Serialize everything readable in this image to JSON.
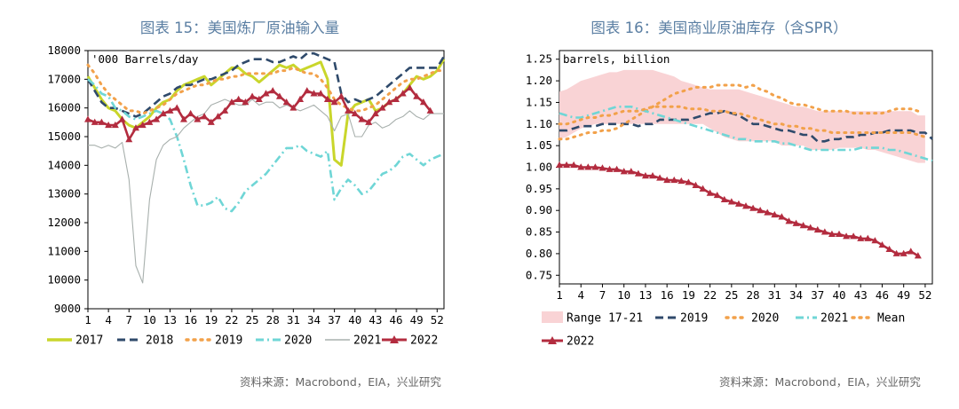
{
  "left_title": "图表 15：美国炼厂原油输入量",
  "right_title": "图表 16：美国商业原油库存（含SPR）",
  "left_source": "资料来源：Macrobond，EIA，兴业研究",
  "right_source": "资料来源：Macrobond，EIA，兴业研究",
  "colors": {
    "title": "#5b7fa3",
    "y2017": "#c9d62b",
    "y2018": "#2f4a6b",
    "y2019": "#f2a14a",
    "y2020": "#6fd6d6",
    "y2021": "#a8b0ad",
    "y2022": "#b32c3f",
    "range": "#f9d3d5",
    "mean": "#f2a14a"
  },
  "chart_data": [
    {
      "type": "line",
      "title": "图表 15：美国炼厂原油输入量",
      "unit_label": "'000 Barrels/day",
      "xlabel": "",
      "ylabel": "",
      "xlim": [
        1,
        53
      ],
      "ylim": [
        9000,
        18000
      ],
      "x_ticks": [
        1,
        4,
        7,
        10,
        13,
        16,
        19,
        22,
        25,
        28,
        31,
        34,
        37,
        40,
        43,
        46,
        49,
        52
      ],
      "y_ticks": [
        9000,
        10000,
        11000,
        12000,
        13000,
        14000,
        15000,
        16000,
        17000,
        18000
      ],
      "legend_position": "bottom",
      "series": [
        {
          "name": "2017",
          "style": "solid-thick",
          "color_key": "y2017",
          "x_start": 1,
          "values": [
            17100,
            16700,
            16300,
            16000,
            15900,
            15600,
            15400,
            15300,
            15500,
            15700,
            16000,
            16200,
            16300,
            16600,
            16800,
            16900,
            17000,
            17100,
            16800,
            17000,
            17200,
            17400,
            17400,
            17200,
            17100,
            16900,
            17100,
            17300,
            17500,
            17400,
            17500,
            17300,
            17400,
            17500,
            17600,
            17000,
            14200,
            14000,
            15800,
            16100,
            16200,
            16300,
            15900,
            16000,
            16200,
            16300,
            16500,
            16800,
            17100,
            17000,
            17100,
            17300,
            17700
          ]
        },
        {
          "name": "2018",
          "style": "dash",
          "color_key": "y2018",
          "x_start": 1,
          "values": [
            17000,
            16600,
            16200,
            16000,
            16000,
            15900,
            15800,
            15700,
            15800,
            16000,
            16200,
            16400,
            16500,
            16700,
            16800,
            16800,
            16900,
            17000,
            17000,
            17100,
            17200,
            17300,
            17500,
            17600,
            17700,
            17700,
            17700,
            17600,
            17600,
            17700,
            17800,
            17700,
            17900,
            17900,
            17800,
            17700,
            17600,
            16500,
            16200,
            16300,
            16200,
            16300,
            16400,
            16600,
            16800,
            17000,
            17200,
            17400,
            17400,
            17400,
            17400,
            17400,
            17800
          ]
        },
        {
          "name": "2019",
          "style": "dot",
          "color_key": "y2019",
          "x_start": 1,
          "values": [
            17500,
            17200,
            16800,
            16500,
            16300,
            16100,
            15900,
            15900,
            15800,
            15900,
            16000,
            16100,
            16300,
            16500,
            16600,
            16700,
            16800,
            16800,
            16900,
            17000,
            17000,
            17100,
            17100,
            17200,
            17200,
            17200,
            17200,
            17200,
            17300,
            17300,
            17400,
            17300,
            17200,
            17200,
            17000,
            16700,
            16300,
            16100,
            16000,
            15900,
            15900,
            16000,
            16100,
            16300,
            16500,
            16700,
            16900,
            17000,
            17000,
            17100,
            17200,
            17300,
            17300
          ]
        },
        {
          "name": "2020",
          "style": "dashdot",
          "color_key": "y2020",
          "x_start": 1,
          "values": [
            17000,
            16800,
            16500,
            16400,
            16000,
            15900,
            15700,
            15600,
            15700,
            15800,
            15900,
            15800,
            15600,
            15000,
            14200,
            13300,
            12600,
            12600,
            12700,
            12900,
            12500,
            12400,
            12700,
            13100,
            13300,
            13500,
            13700,
            14000,
            14300,
            14600,
            14600,
            14700,
            14500,
            14400,
            14300,
            14500,
            12800,
            13200,
            13500,
            13300,
            13000,
            13100,
            13400,
            13700,
            13800,
            14000,
            14300,
            14400,
            14200,
            14000,
            14200,
            14300,
            14400
          ]
        },
        {
          "name": "2021",
          "style": "thin",
          "color_key": "y2021",
          "x_start": 1,
          "values": [
            14700,
            14700,
            14600,
            14700,
            14600,
            14800,
            13500,
            10500,
            9900,
            12800,
            14200,
            14700,
            14900,
            15000,
            15300,
            15500,
            15700,
            15800,
            16100,
            16200,
            16300,
            16200,
            16100,
            16100,
            16300,
            16100,
            16200,
            16200,
            16000,
            16100,
            16000,
            15900,
            16000,
            16100,
            15900,
            15700,
            15200,
            15700,
            15800,
            15000,
            15000,
            15400,
            15500,
            15300,
            15400,
            15600,
            15700,
            15900,
            15700,
            15600,
            15800,
            15800,
            15800
          ]
        },
        {
          "name": "2022",
          "style": "triangle",
          "color_key": "y2022",
          "x_start": 1,
          "values": [
            15600,
            15500,
            15500,
            15400,
            15400,
            15600,
            14900,
            15300,
            15400,
            15500,
            15600,
            15800,
            15900,
            16000,
            15600,
            15800,
            15600,
            15700,
            15500,
            15700,
            15900,
            16200,
            16300,
            16200,
            16400,
            16300,
            16500,
            16600,
            16400,
            16200,
            16000,
            16300,
            16600,
            16500,
            16500,
            16300,
            16200,
            16400,
            15900,
            15800,
            15600,
            15500,
            15800,
            16000,
            16200,
            16300,
            16500,
            16700,
            16400,
            16200,
            15900
          ]
        }
      ]
    },
    {
      "type": "line",
      "title": "图表 16：美国商业原油库存（含SPR）",
      "unit_label": "barrels, billion",
      "xlabel": "",
      "ylabel": "",
      "xlim": [
        1,
        53
      ],
      "ylim": [
        0.73,
        1.27
      ],
      "x_ticks": [
        1,
        4,
        7,
        10,
        13,
        16,
        19,
        22,
        25,
        28,
        31,
        34,
        37,
        40,
        43,
        46,
        49,
        52
      ],
      "y_ticks": [
        0.75,
        0.8,
        0.85,
        0.9,
        0.95,
        1.0,
        1.05,
        1.1,
        1.15,
        1.2,
        1.25
      ],
      "legend_position": "bottom",
      "series": [
        {
          "name": "Range 17-21",
          "style": "band",
          "color_key": "range",
          "x_start": 1,
          "lower": [
            1.065,
            1.07,
            1.08,
            1.09,
            1.095,
            1.1,
            1.1,
            1.1,
            1.1,
            1.1,
            1.1,
            1.1,
            1.1,
            1.1,
            1.1,
            1.1,
            1.1,
            1.1,
            1.1,
            1.1,
            1.1,
            1.09,
            1.08,
            1.07,
            1.065,
            1.06,
            1.06,
            1.06,
            1.06,
            1.06,
            1.06,
            1.05,
            1.05,
            1.05,
            1.05,
            1.04,
            1.04,
            1.04,
            1.04,
            1.045,
            1.045,
            1.045,
            1.045,
            1.04,
            1.04,
            1.035,
            1.03,
            1.025,
            1.02,
            1.015,
            1.01,
            1.01
          ],
          "upper": [
            1.175,
            1.18,
            1.19,
            1.2,
            1.205,
            1.21,
            1.215,
            1.22,
            1.22,
            1.225,
            1.225,
            1.225,
            1.225,
            1.225,
            1.22,
            1.215,
            1.21,
            1.2,
            1.195,
            1.19,
            1.185,
            1.18,
            1.18,
            1.18,
            1.18,
            1.18,
            1.175,
            1.17,
            1.165,
            1.16,
            1.155,
            1.15,
            1.145,
            1.14,
            1.14,
            1.135,
            1.13,
            1.13,
            1.13,
            1.13,
            1.13,
            1.13,
            1.13,
            1.13,
            1.13,
            1.13,
            1.13,
            1.13,
            1.13,
            1.13,
            1.12,
            1.12
          ]
        },
        {
          "name": "2019",
          "style": "dash",
          "color_key": "y2018",
          "x_start": 1,
          "values": [
            1.085,
            1.085,
            1.09,
            1.095,
            1.095,
            1.095,
            1.1,
            1.1,
            1.1,
            1.1,
            1.1,
            1.095,
            1.1,
            1.1,
            1.11,
            1.11,
            1.11,
            1.11,
            1.11,
            1.115,
            1.12,
            1.125,
            1.125,
            1.13,
            1.125,
            1.12,
            1.11,
            1.1,
            1.1,
            1.095,
            1.09,
            1.085,
            1.085,
            1.08,
            1.075,
            1.075,
            1.06,
            1.06,
            1.065,
            1.065,
            1.07,
            1.07,
            1.075,
            1.075,
            1.08,
            1.08,
            1.085,
            1.085,
            1.085,
            1.085,
            1.08,
            1.08,
            1.065
          ]
        },
        {
          "name": "2020",
          "style": "dot",
          "color_key": "y2019",
          "x_start": 1,
          "values": [
            1.065,
            1.065,
            1.07,
            1.075,
            1.08,
            1.08,
            1.085,
            1.085,
            1.09,
            1.1,
            1.11,
            1.12,
            1.13,
            1.14,
            1.15,
            1.16,
            1.17,
            1.175,
            1.18,
            1.185,
            1.185,
            1.185,
            1.19,
            1.19,
            1.19,
            1.19,
            1.185,
            1.19,
            1.18,
            1.175,
            1.165,
            1.16,
            1.15,
            1.145,
            1.145,
            1.14,
            1.135,
            1.13,
            1.13,
            1.13,
            1.13,
            1.125,
            1.125,
            1.125,
            1.125,
            1.125,
            1.13,
            1.135,
            1.135,
            1.135,
            1.13
          ]
        },
        {
          "name": "2021",
          "style": "dashdot",
          "color_key": "y2020",
          "x_start": 1,
          "values": [
            1.125,
            1.12,
            1.115,
            1.115,
            1.12,
            1.125,
            1.13,
            1.135,
            1.14,
            1.14,
            1.14,
            1.135,
            1.13,
            1.125,
            1.12,
            1.115,
            1.11,
            1.105,
            1.1,
            1.095,
            1.09,
            1.085,
            1.08,
            1.075,
            1.07,
            1.065,
            1.065,
            1.06,
            1.06,
            1.06,
            1.06,
            1.055,
            1.055,
            1.05,
            1.045,
            1.04,
            1.04,
            1.04,
            1.04,
            1.04,
            1.04,
            1.04,
            1.045,
            1.045,
            1.045,
            1.045,
            1.04,
            1.04,
            1.035,
            1.03,
            1.025,
            1.02,
            1.015
          ]
        },
        {
          "name": "Mean",
          "style": "dot",
          "color_key": "mean",
          "x_start": 1,
          "values": [
            1.1,
            1.1,
            1.105,
            1.11,
            1.115,
            1.115,
            1.12,
            1.12,
            1.125,
            1.13,
            1.13,
            1.13,
            1.135,
            1.14,
            1.14,
            1.14,
            1.14,
            1.14,
            1.135,
            1.135,
            1.135,
            1.13,
            1.13,
            1.13,
            1.125,
            1.125,
            1.12,
            1.115,
            1.11,
            1.105,
            1.1,
            1.1,
            1.095,
            1.095,
            1.09,
            1.09,
            1.085,
            1.085,
            1.08,
            1.08,
            1.08,
            1.08,
            1.08,
            1.08,
            1.08,
            1.08,
            1.08,
            1.08,
            1.08,
            1.08,
            1.075,
            1.07
          ]
        },
        {
          "name": "2022",
          "style": "triangle",
          "color_key": "y2022",
          "x_start": 1,
          "values": [
            1.005,
            1.005,
            1.005,
            1.0,
            1.0,
            1.0,
            0.998,
            0.995,
            0.995,
            0.99,
            0.99,
            0.985,
            0.98,
            0.98,
            0.975,
            0.97,
            0.97,
            0.968,
            0.965,
            0.958,
            0.95,
            0.94,
            0.935,
            0.925,
            0.92,
            0.915,
            0.91,
            0.905,
            0.9,
            0.895,
            0.89,
            0.885,
            0.875,
            0.87,
            0.865,
            0.86,
            0.855,
            0.85,
            0.845,
            0.845,
            0.84,
            0.84,
            0.835,
            0.835,
            0.83,
            0.82,
            0.81,
            0.8,
            0.8,
            0.805,
            0.795
          ]
        }
      ]
    }
  ]
}
